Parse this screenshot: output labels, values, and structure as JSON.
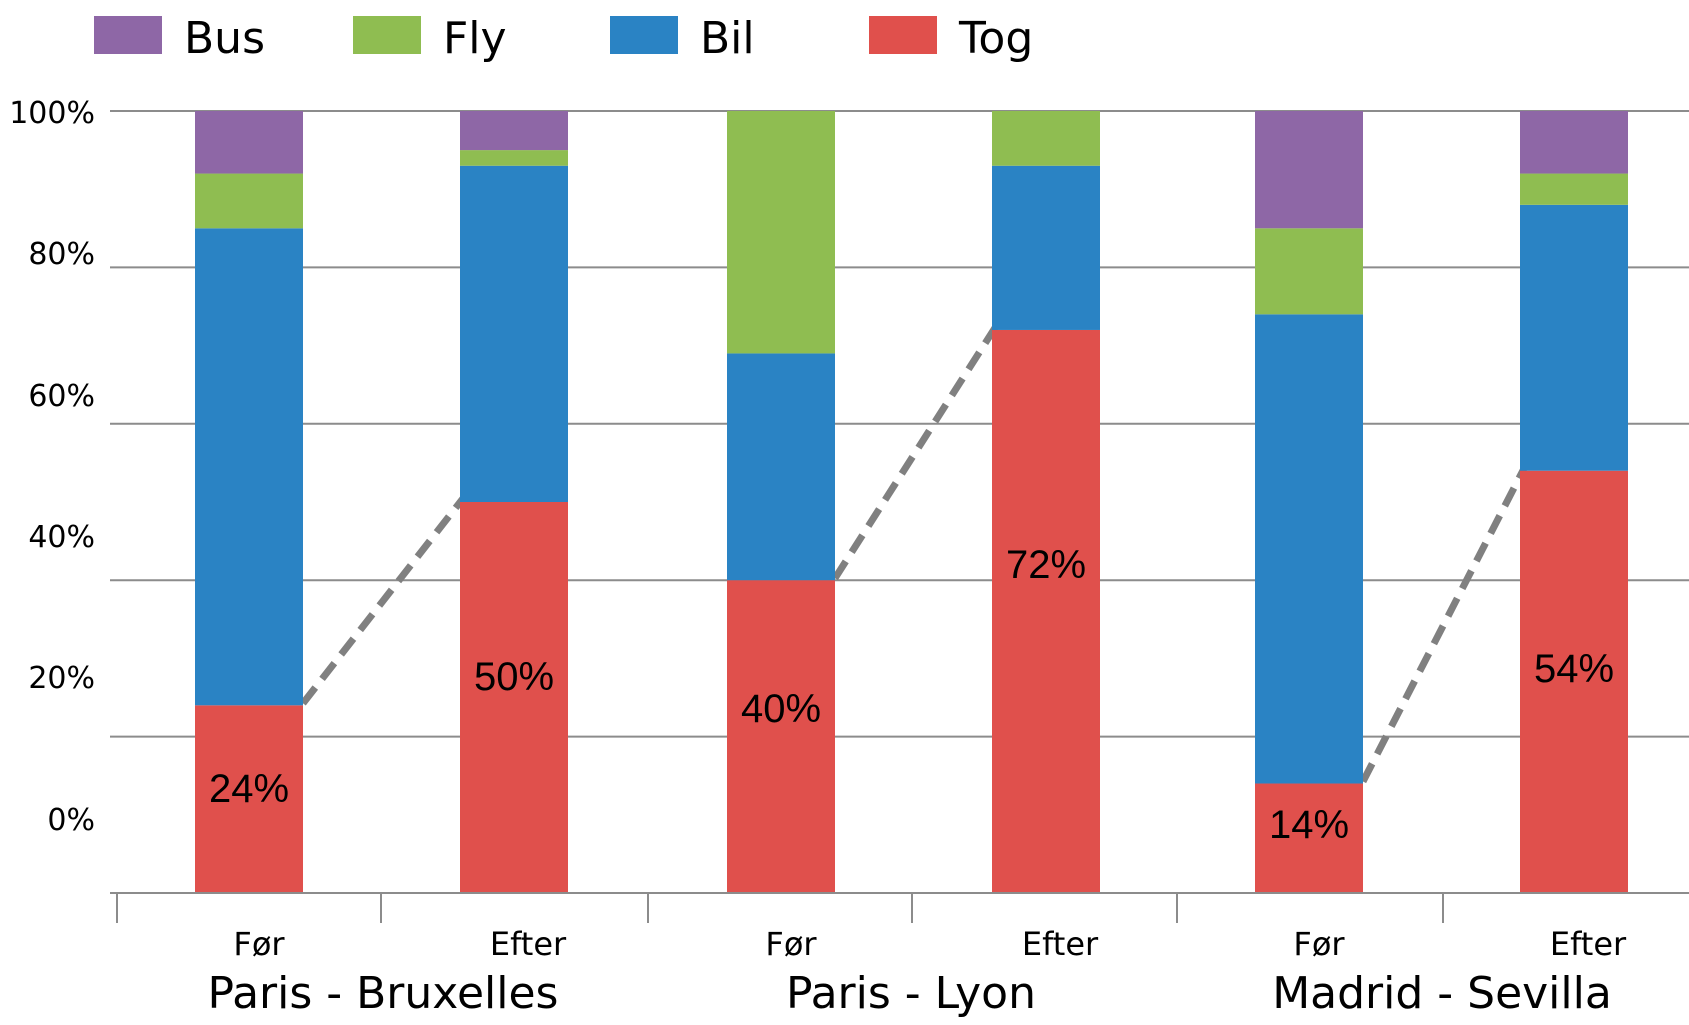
{
  "chart_data": {
    "type": "bar",
    "stacked": true,
    "title": "",
    "xlabel": "",
    "ylabel": "",
    "ylim": [
      0,
      100
    ],
    "yticks": [
      "0%",
      "20%",
      "40%",
      "60%",
      "80%",
      "100%"
    ],
    "grid": true,
    "legend_position": "top",
    "categories": [
      "Før",
      "Efter",
      "Før",
      "Efter",
      "Før",
      "Efter"
    ],
    "groups": [
      {
        "label": "Paris - Bruxelles",
        "categories": [
          "Før",
          "Efter"
        ]
      },
      {
        "label": "Paris - Lyon",
        "categories": [
          "Før",
          "Efter"
        ]
      },
      {
        "label": "Madrid - Sevilla",
        "categories": [
          "Før",
          "Efter"
        ]
      }
    ],
    "series": [
      {
        "name": "Tog",
        "color": "#e0504c",
        "values": [
          24,
          50,
          40,
          72,
          14,
          54
        ]
      },
      {
        "name": "Bil",
        "color": "#2a83c4",
        "values": [
          61,
          43,
          29,
          21,
          60,
          34
        ]
      },
      {
        "name": "Fly",
        "color": "#8fbd51",
        "values": [
          7,
          2,
          31,
          7,
          11,
          4
        ]
      },
      {
        "name": "Bus",
        "color": "#8e67a6",
        "values": [
          8,
          5,
          0,
          0,
          15,
          8
        ]
      }
    ],
    "legend_order": [
      "Bus",
      "Fly",
      "Bil",
      "Tog"
    ],
    "data_labels": [
      "24%",
      "50%",
      "40%",
      "72%",
      "14%",
      "54%"
    ],
    "connector_color": "#808080"
  }
}
